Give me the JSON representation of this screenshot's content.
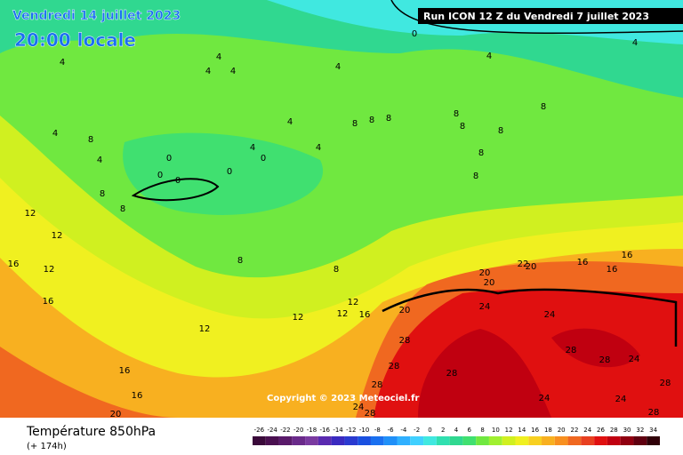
{
  "header": {
    "date": "Vendredi 14 juillet 2023",
    "time": "20:00 locale",
    "run": "Run ICON 12 Z du Vendredi 7 juillet 2023"
  },
  "map": {
    "copyright": "Copyright © 2023 Meteociel.fr",
    "isotherm_labels": [
      0,
      4,
      4,
      4,
      4,
      4,
      4,
      4,
      4,
      4,
      4,
      0,
      0,
      0,
      0,
      0,
      8,
      4,
      8,
      8,
      4,
      8,
      8,
      8,
      8,
      8,
      8,
      8,
      8,
      8,
      8,
      8,
      12,
      12,
      16,
      12,
      16,
      12,
      12,
      12,
      16,
      12,
      16,
      16,
      20,
      20,
      20,
      20,
      20,
      22,
      16,
      16,
      16,
      24,
      24,
      28,
      28,
      28,
      28,
      28,
      28,
      24,
      28,
      24,
      24,
      28,
      28,
      24
    ]
  },
  "footer": {
    "title": "Température 850hPa",
    "lead": "(+ 174h)"
  },
  "legend": {
    "ticks": [
      -26,
      -24,
      -22,
      -20,
      -18,
      -16,
      -14,
      -12,
      -10,
      -8,
      -6,
      -4,
      -2,
      0,
      2,
      4,
      6,
      8,
      10,
      12,
      14,
      16,
      18,
      20,
      22,
      24,
      26,
      28,
      30,
      32,
      34
    ],
    "colors": [
      "#3a0a3a",
      "#4a1050",
      "#5a1a6a",
      "#6a2a8a",
      "#7a3aa0",
      "#5a2ab0",
      "#3a2ac0",
      "#2a3ad0",
      "#1a50e0",
      "#1a70f0",
      "#2090f8",
      "#30b0ff",
      "#40d0ff",
      "#40e8e0",
      "#30e0b0",
      "#30d890",
      "#40e070",
      "#70e840",
      "#a0f030",
      "#d0f020",
      "#f0f020",
      "#f8d020",
      "#f8b020",
      "#f89020",
      "#f06820",
      "#e84020",
      "#e01010",
      "#c00010",
      "#900010",
      "#600010",
      "#300008"
    ]
  }
}
